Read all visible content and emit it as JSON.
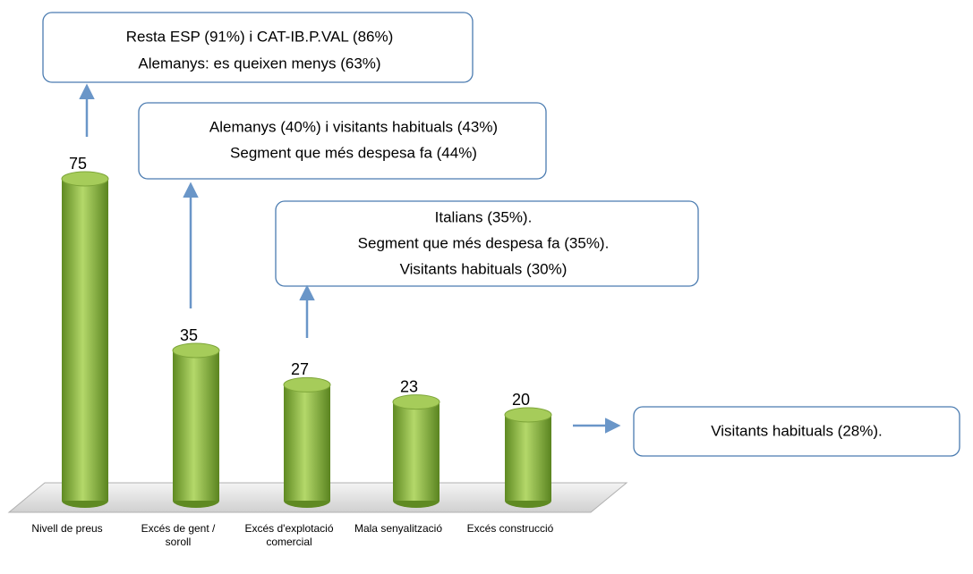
{
  "chart_data": {
    "type": "bar",
    "categories": [
      "Nivell de preus",
      "Excés de gent / soroll",
      "Excés d'explotació comercial",
      "Mala senyalització",
      "Excés construcció"
    ],
    "values": [
      75,
      35,
      27,
      23,
      20
    ],
    "color": "#8cb63c",
    "annotations": [
      {
        "lines": [
          "Resta ESP (91%) i CAT-IB.P.VAL (86%)",
          "Alemanys: es queixen menys (63%)"
        ]
      },
      {
        "lines": [
          "Alemanys (40%) i visitants habituals (43%)",
          "Segment que més despesa fa (44%)"
        ]
      },
      {
        "lines": [
          "Italians (35%).",
          "Segment que més despesa fa (35%).",
          "Visitants habituals (30%)"
        ]
      },
      {
        "lines": [
          "Visitants habituals (28%)."
        ]
      }
    ]
  }
}
